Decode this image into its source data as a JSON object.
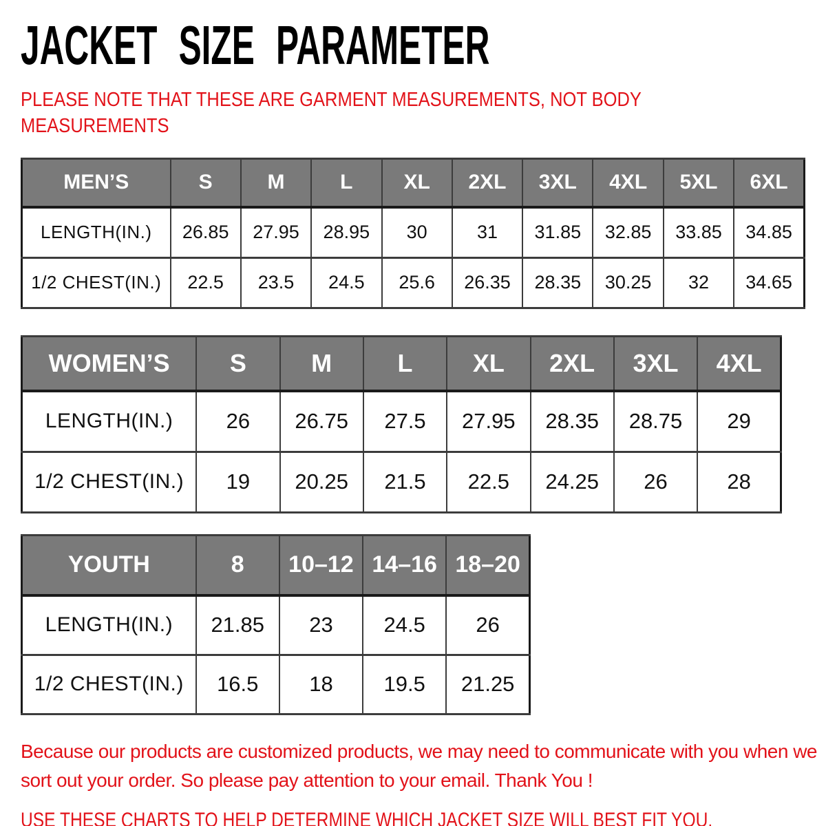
{
  "title": "JACKET SIZE PARAMETER",
  "note": "PLEASE NOTE THAT THESE ARE GARMENT MEASUREMENTS, NOT BODY MEASUREMENTS",
  "colors": {
    "accent_red": "#e21219",
    "header_gray": "#7a7a7a",
    "border_dark": "#1a1a1a",
    "grid_gray": "#3c3c3c",
    "text_black": "#111111"
  },
  "tables": [
    {
      "id": "mens",
      "columns": [
        "MEN’S",
        "S",
        "M",
        "L",
        "XL",
        "2XL",
        "3XL",
        "4XL",
        "5XL",
        "6XL"
      ],
      "rows": [
        {
          "label": "LENGTH(IN.)",
          "values": [
            "26.85",
            "27.95",
            "28.95",
            "30",
            "31",
            "31.85",
            "32.85",
            "33.85",
            "34.85"
          ]
        },
        {
          "label": "1/2 CHEST(IN.)",
          "values": [
            "22.5",
            "23.5",
            "24.5",
            "25.6",
            "26.35",
            "28.35",
            "30.25",
            "32",
            "34.65"
          ]
        }
      ]
    },
    {
      "id": "womens",
      "columns": [
        "WOMEN’S",
        "S",
        "M",
        "L",
        "XL",
        "2XL",
        "3XL",
        "4XL"
      ],
      "rows": [
        {
          "label": "LENGTH(IN.)",
          "values": [
            "26",
            "26.75",
            "27.5",
            "27.95",
            "28.35",
            "28.75",
            "29"
          ]
        },
        {
          "label": "1/2 CHEST(IN.)",
          "values": [
            "19",
            "20.25",
            "21.5",
            "22.5",
            "24.25",
            "26",
            "28"
          ]
        }
      ]
    },
    {
      "id": "youth",
      "columns": [
        "YOUTH",
        "8",
        "10–12",
        "14–16",
        "18–20"
      ],
      "rows": [
        {
          "label": "LENGTH(IN.)",
          "values": [
            "21.85",
            "23",
            "24.5",
            "26"
          ]
        },
        {
          "label": "1/2 CHEST(IN.)",
          "values": [
            "16.5",
            "18",
            "19.5",
            "21.25"
          ]
        }
      ]
    }
  ],
  "footer": {
    "paragraph": "Because our products are customized products, we may need to communicate with you when we sort out your order. So please pay attention to your email. Thank You !",
    "advice": "USE THESE CHARTS TO HELP DETERMINE WHICH JACKET SIZE WILL BEST FIT YOU."
  }
}
